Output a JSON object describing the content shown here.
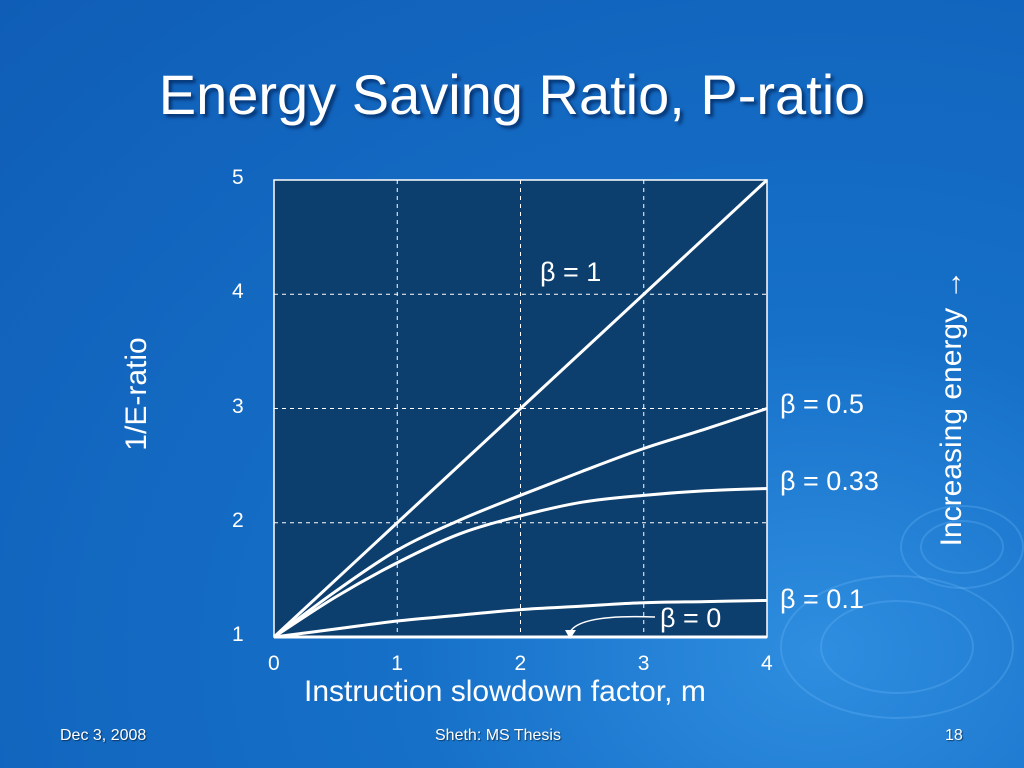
{
  "slide": {
    "title": "Energy Saving Ratio, P-ratio",
    "footer_left": "Dec 3, 2008",
    "footer_center": "Sheth: MS Thesis",
    "footer_right": "18"
  },
  "colors": {
    "background": "#1670c8",
    "plot_area": "#0c3e6e",
    "lines": "#ffffff",
    "grid": "#ffffff"
  },
  "chart_data": {
    "type": "line",
    "xlabel": "Instruction slowdown factor, m",
    "ylabel": "1/E-ratio",
    "side_label": "Increasing energy →",
    "xlim": [
      0,
      4
    ],
    "ylim": [
      1,
      5
    ],
    "x_ticks": [
      "0",
      "1",
      "2",
      "3",
      "4"
    ],
    "y_ticks": [
      "1",
      "2",
      "3",
      "4",
      "5"
    ],
    "grid": true,
    "grid_style": "dashed",
    "series": [
      {
        "name": "β = 1",
        "x": [
          0,
          1,
          2,
          3,
          4
        ],
        "y": [
          1,
          2,
          3,
          4,
          5
        ]
      },
      {
        "name": "β = 0.5",
        "x": [
          0,
          0.5,
          1,
          1.5,
          2,
          2.5,
          3,
          3.5,
          4
        ],
        "y": [
          1,
          1.4,
          1.76,
          2.02,
          2.24,
          2.45,
          2.65,
          2.82,
          3.0
        ]
      },
      {
        "name": "β = 0.33",
        "x": [
          0,
          0.5,
          1,
          1.5,
          2,
          2.5,
          3,
          3.5,
          4
        ],
        "y": [
          1,
          1.35,
          1.65,
          1.9,
          2.06,
          2.18,
          2.24,
          2.28,
          2.3
        ]
      },
      {
        "name": "β = 0.1",
        "x": [
          0,
          0.5,
          1,
          1.5,
          2,
          2.5,
          3,
          3.5,
          4
        ],
        "y": [
          1,
          1.07,
          1.14,
          1.19,
          1.24,
          1.27,
          1.3,
          1.31,
          1.32
        ]
      },
      {
        "name": "β = 0",
        "x": [
          0,
          4
        ],
        "y": [
          1,
          1
        ]
      }
    ]
  }
}
